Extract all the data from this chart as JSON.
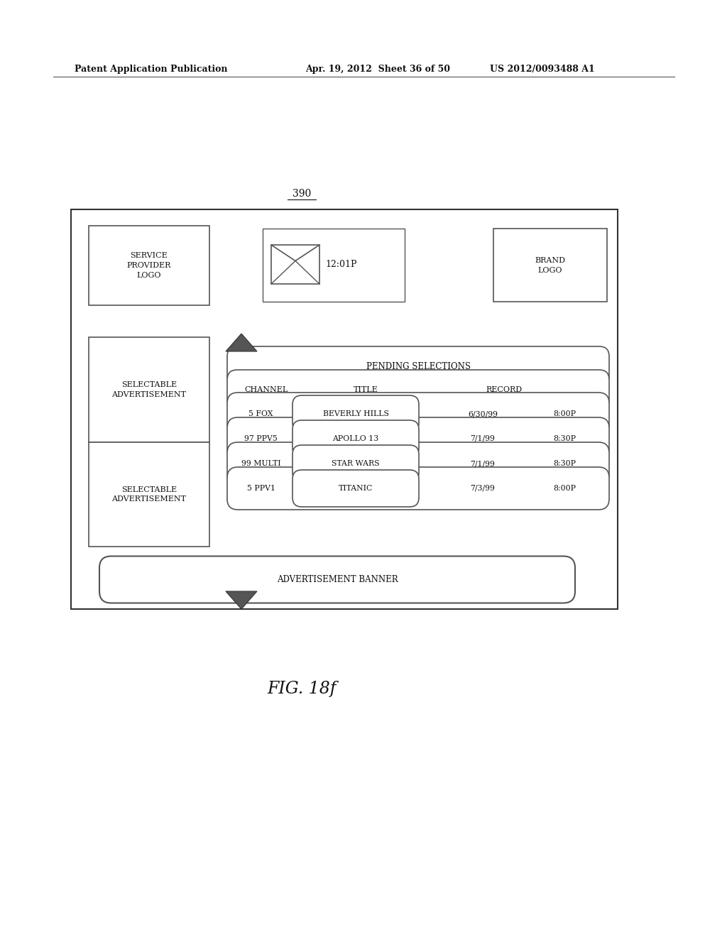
{
  "bg_color": "#ffffff",
  "header_text_left": "Patent Application Publication",
  "header_text_mid": "Apr. 19, 2012  Sheet 36 of 50",
  "header_text_right": "US 2012/0093488 A1",
  "fig_label": "390",
  "caption": "FIG. 18f",
  "service_provider_text": "SERVICE\nPROVIDER\nLOGO",
  "brand_logo_text": "BRAND\nLOGO",
  "time_text": "12:01P",
  "pending_header": "PENDING SELECTIONS",
  "rows": [
    {
      "channel": "5 FOX",
      "title": "BEVERLY HILLS",
      "date": "6/30/99",
      "time": "8:00P"
    },
    {
      "channel": "97 PPV5",
      "title": "APOLLO 13",
      "date": "7/1/99",
      "time": "8:30P"
    },
    {
      "channel": "99 MULTI",
      "title": "STAR WARS",
      "date": "7/1/99",
      "time": "8:30P"
    },
    {
      "channel": "5 PPV1",
      "title": "TITANIC",
      "date": "7/3/99",
      "time": "8:00P"
    }
  ],
  "ad_banner_text": "ADVERTISEMENT BANNER",
  "selectable_ad1_text": "SELECTABLE\nADVERTISEMENT",
  "selectable_ad2_text": "SELECTABLE\nADVERTISEMENT"
}
